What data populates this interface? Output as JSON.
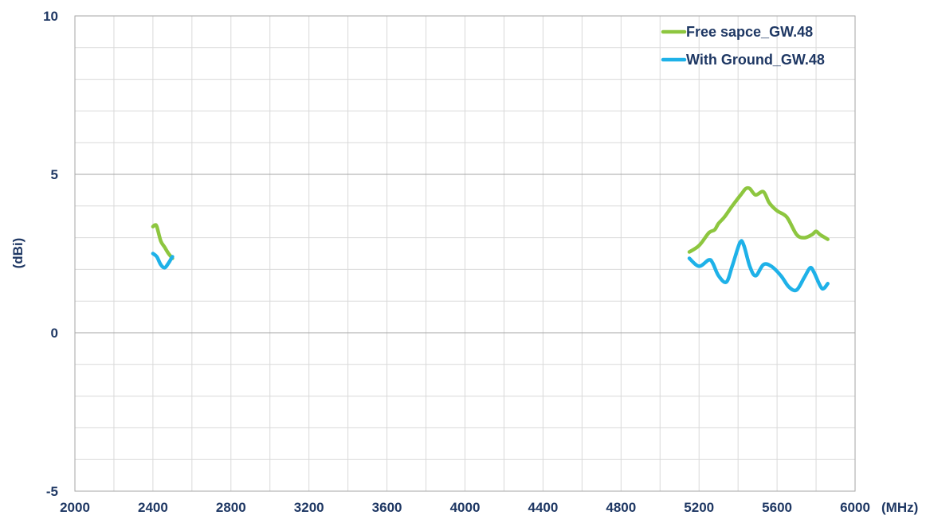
{
  "chart_data": {
    "type": "line",
    "title": "",
    "xlabel": "(MHz)",
    "ylabel": "(dBi)",
    "xlim": [
      2000,
      6000
    ],
    "ylim": [
      -5,
      10
    ],
    "x_ticks": [
      2000,
      2400,
      2800,
      3200,
      3600,
      4000,
      4400,
      4800,
      5200,
      5600,
      6000
    ],
    "x_tick_labels": [
      "2000",
      "2400",
      "2800",
      "3200",
      "3600",
      "4000",
      "4400",
      "4800",
      "5200",
      "5600",
      "6000"
    ],
    "x_minor_step": 200,
    "y_ticks": [
      -5,
      0,
      5,
      10
    ],
    "y_tick_labels": [
      "-5",
      "0",
      "5",
      "10"
    ],
    "y_minor_step": 1,
    "grid": true,
    "legend_position": "top-right",
    "series": [
      {
        "name": "Free sapce_GW.48",
        "color": "#8dc63f",
        "segments": [
          [
            [
              2400,
              3.35
            ],
            [
              2410,
              3.4
            ],
            [
              2420,
              3.35
            ],
            [
              2440,
              2.9
            ],
            [
              2460,
              2.7
            ],
            [
              2480,
              2.5
            ],
            [
              2500,
              2.35
            ]
          ],
          [
            [
              5150,
              2.55
            ],
            [
              5200,
              2.75
            ],
            [
              5250,
              3.15
            ],
            [
              5280,
              3.25
            ],
            [
              5300,
              3.45
            ],
            [
              5330,
              3.65
            ],
            [
              5370,
              4.0
            ],
            [
              5420,
              4.4
            ],
            [
              5440,
              4.55
            ],
            [
              5460,
              4.55
            ],
            [
              5490,
              4.35
            ],
            [
              5530,
              4.45
            ],
            [
              5560,
              4.1
            ],
            [
              5600,
              3.85
            ],
            [
              5650,
              3.65
            ],
            [
              5700,
              3.1
            ],
            [
              5740,
              3.0
            ],
            [
              5780,
              3.1
            ],
            [
              5800,
              3.2
            ],
            [
              5820,
              3.1
            ],
            [
              5860,
              2.95
            ]
          ]
        ]
      },
      {
        "name": "With Ground_GW.48",
        "color": "#1eb1e8",
        "segments": [
          [
            [
              2400,
              2.5
            ],
            [
              2420,
              2.4
            ],
            [
              2440,
              2.15
            ],
            [
              2460,
              2.05
            ],
            [
              2480,
              2.2
            ],
            [
              2490,
              2.3
            ],
            [
              2500,
              2.4
            ]
          ],
          [
            [
              5150,
              2.35
            ],
            [
              5200,
              2.1
            ],
            [
              5250,
              2.3
            ],
            [
              5270,
              2.2
            ],
            [
              5300,
              1.8
            ],
            [
              5340,
              1.6
            ],
            [
              5370,
              2.1
            ],
            [
              5410,
              2.85
            ],
            [
              5430,
              2.75
            ],
            [
              5460,
              2.1
            ],
            [
              5490,
              1.8
            ],
            [
              5530,
              2.15
            ],
            [
              5570,
              2.1
            ],
            [
              5620,
              1.8
            ],
            [
              5660,
              1.45
            ],
            [
              5700,
              1.35
            ],
            [
              5740,
              1.75
            ],
            [
              5770,
              2.05
            ],
            [
              5790,
              1.9
            ],
            [
              5830,
              1.4
            ],
            [
              5860,
              1.55
            ]
          ]
        ]
      }
    ]
  }
}
